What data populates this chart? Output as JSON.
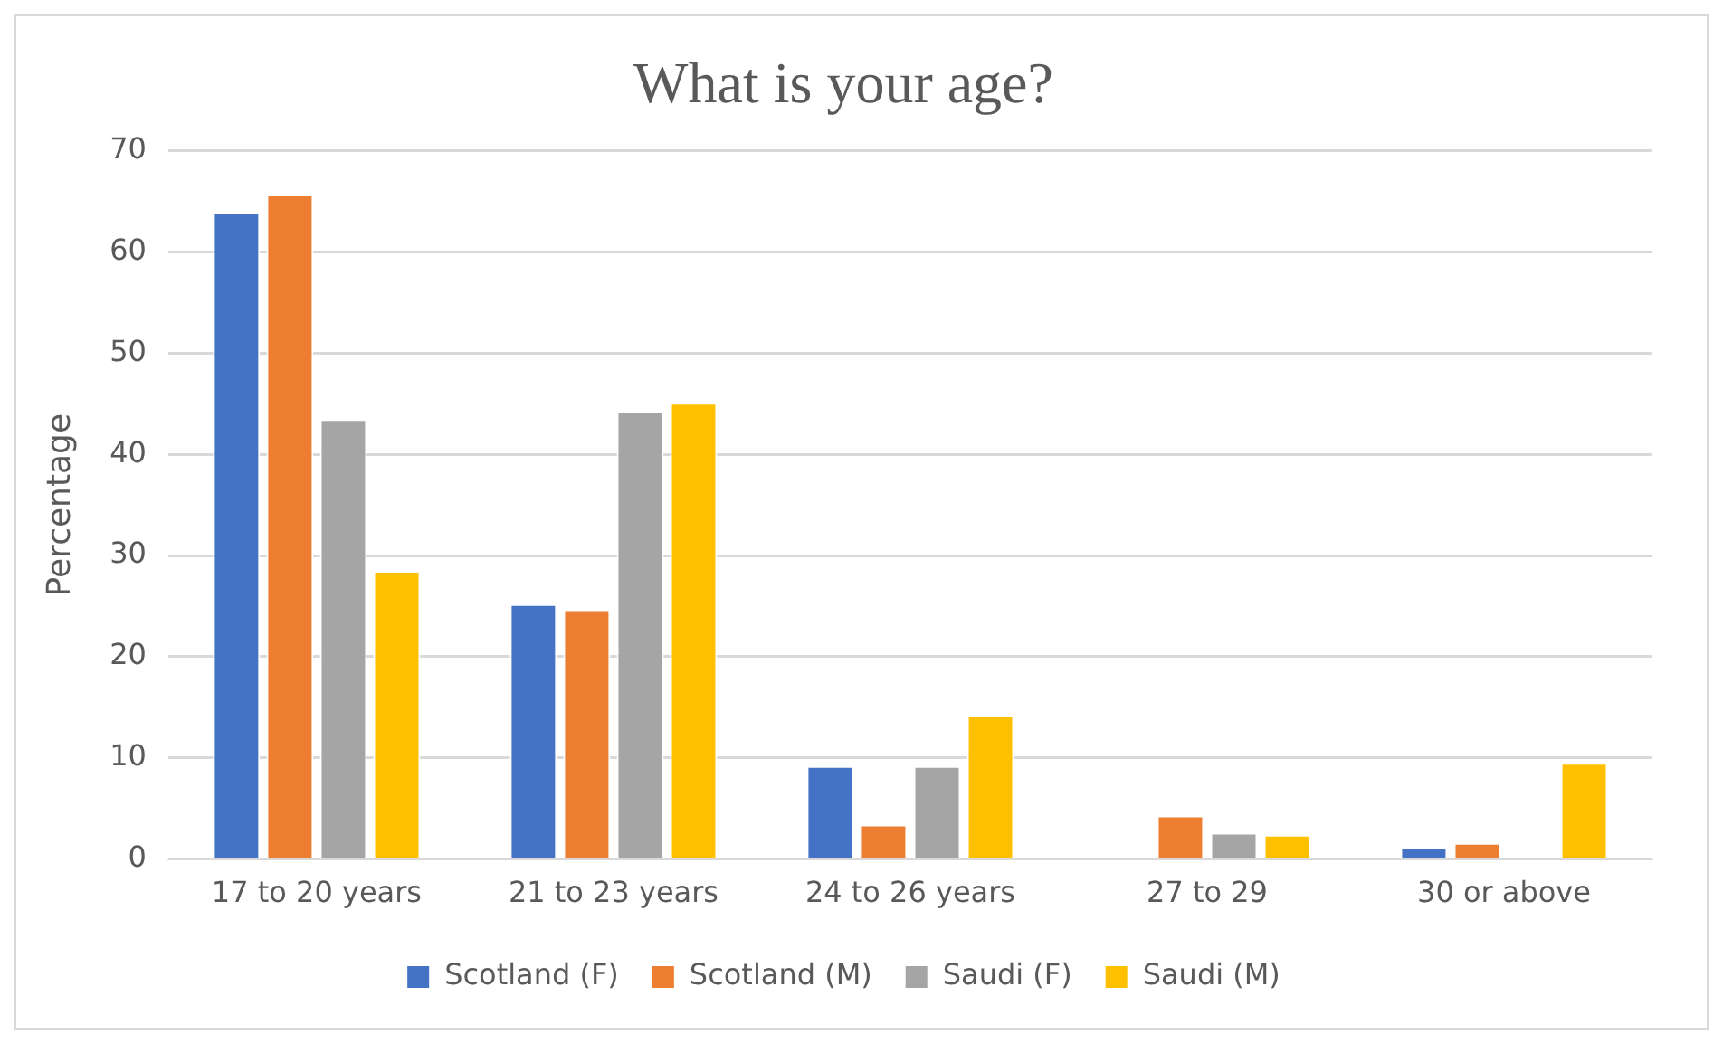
{
  "chart_data": {
    "type": "bar",
    "title": "What is your age?",
    "ylabel": "Percentage",
    "categories": [
      "17 to 20 years",
      "21 to 23 years",
      "24 to 26 years",
      "27 to 29",
      "30 or above"
    ],
    "series": [
      {
        "name": "Scotland (F)",
        "color": "#4472c4",
        "values": [
          64,
          25.2,
          9.2,
          0,
          1.2
        ]
      },
      {
        "name": "Scotland (M)",
        "color": "#ed7d31",
        "values": [
          65.7,
          24.7,
          3.4,
          4.3,
          1.6
        ]
      },
      {
        "name": "Saudi (F)",
        "color": "#a5a5a5",
        "values": [
          43.5,
          44.3,
          9.2,
          2.6,
          0
        ]
      },
      {
        "name": "Saudi (M)",
        "color": "#ffc000",
        "values": [
          28.5,
          45.1,
          14.2,
          2.4,
          9.5
        ]
      }
    ],
    "ylim": [
      0,
      70
    ],
    "yticks": [
      0,
      10,
      20,
      30,
      40,
      50,
      60,
      70
    ],
    "grid": "y",
    "legend": "bottom"
  }
}
